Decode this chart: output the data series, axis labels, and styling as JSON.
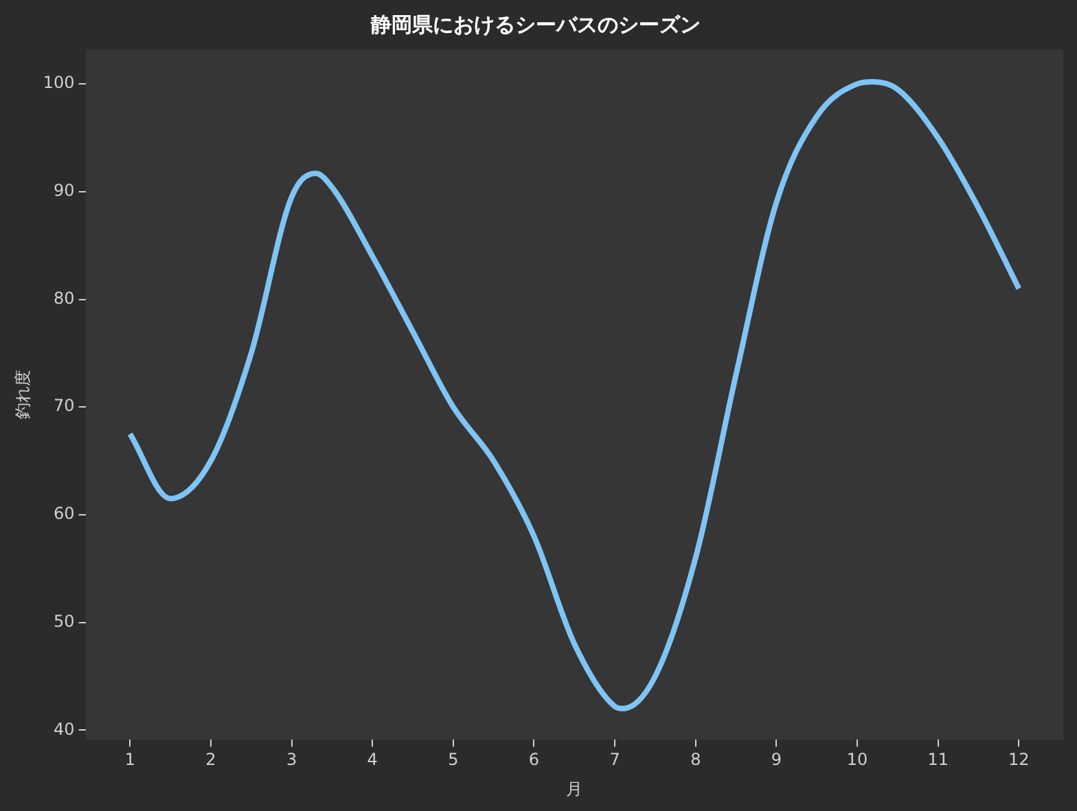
{
  "chart_data": {
    "type": "line",
    "title": "静岡県におけるシーバスのシーズン",
    "xlabel": "月",
    "ylabel": "釣れ度",
    "series": [
      {
        "color": "#7fc4f5",
        "x": [
          1,
          1.5,
          2,
          2.5,
          3,
          3.3,
          3.5,
          4,
          4.5,
          5,
          5.5,
          6,
          6.5,
          7,
          7.1,
          7.5,
          8,
          8.5,
          9,
          9.5,
          10,
          10.2,
          10.5,
          11,
          11.5,
          12
        ],
        "values": [
          67.5,
          61.5,
          65,
          75,
          89.5,
          91.7,
          90.4,
          84,
          77,
          70,
          65,
          58,
          48,
          42.2,
          42,
          45,
          56,
          73,
          89,
          97,
          100,
          100.2,
          99.5,
          95,
          88.5,
          81
        ]
      }
    ],
    "xlim": [
      0.45,
      12.55
    ],
    "xticks": [
      1,
      2,
      3,
      4,
      5,
      6,
      7,
      8,
      9,
      10,
      11,
      12
    ],
    "ylim": [
      39.1,
      103.2
    ],
    "yticks": [
      40,
      50,
      60,
      70,
      80,
      90,
      100
    ],
    "grid": false,
    "legend": false,
    "marker": "none",
    "line_style": "solid"
  }
}
